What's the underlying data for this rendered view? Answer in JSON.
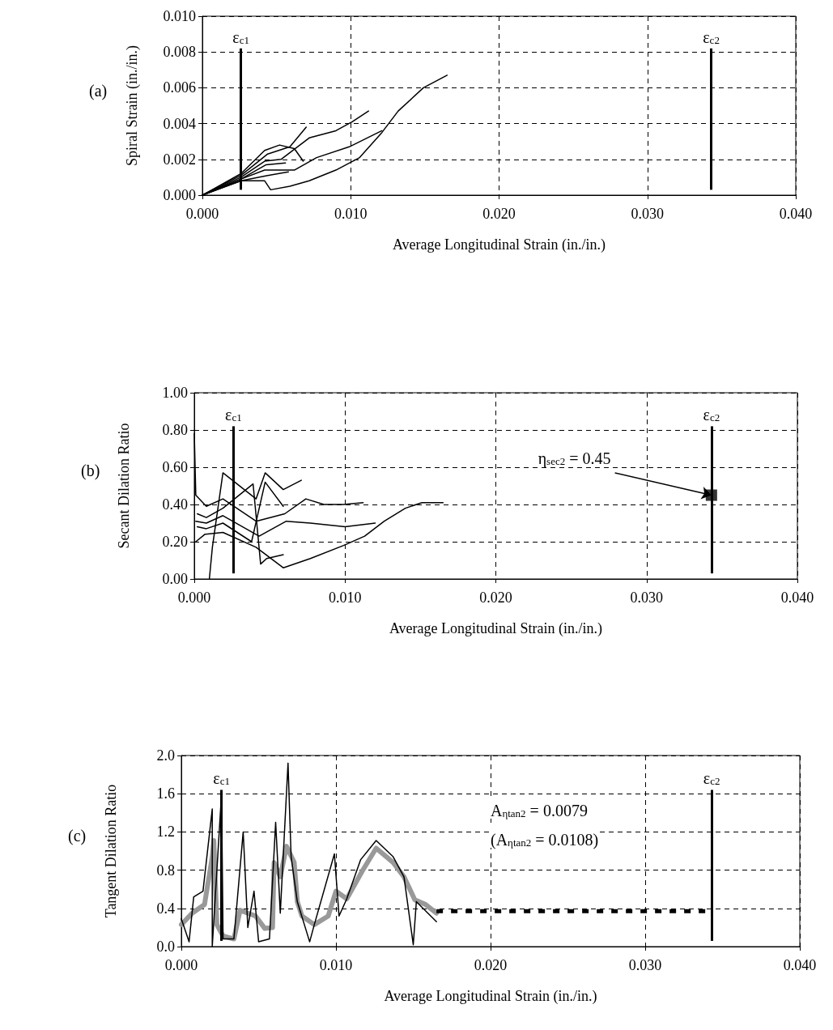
{
  "chart_data": [
    {
      "type": "line",
      "title": "(a)",
      "xlabel": "Average Longitudinal Strain (in./in.)",
      "ylabel": "Spiral Strain (in./in.)",
      "xlim": [
        0,
        0.04
      ],
      "xticks": [
        {
          "value": 0,
          "label": "0.000"
        },
        {
          "value": 0.01,
          "label": "0.010"
        },
        {
          "value": 0.02,
          "label": "0.020"
        },
        {
          "value": 0.03,
          "label": "0.030"
        },
        {
          "value": 0.04,
          "label": "0.040"
        }
      ],
      "ylim": [
        0,
        0.01
      ],
      "yticks": [
        {
          "value": 0,
          "label": "0.000"
        },
        {
          "value": 0.002,
          "label": "0.002"
        },
        {
          "value": 0.004,
          "label": "0.004"
        },
        {
          "value": 0.006,
          "label": "0.006"
        },
        {
          "value": 0.008,
          "label": "0.008"
        },
        {
          "value": 0.01,
          "label": "0.010"
        }
      ],
      "grid": true,
      "marker": "none",
      "ref_lines": [
        {
          "axis": "x",
          "value": 0.0026,
          "label": "ε$_{c1}$",
          "color": "#000000"
        },
        {
          "axis": "x",
          "value": 0.0343,
          "label": "ε$_{c2}$",
          "color": "#000000"
        }
      ],
      "series": [
        {
          "color": "#000000",
          "x": [
            0,
            0.0026,
            0.0042,
            0.0046,
            0.0059,
            0.0072,
            0.009,
            0.0106,
            0.0121,
            0.0132,
            0.0149,
            0.0165
          ],
          "values": [
            0,
            0.0008,
            0.0008,
            0.0003,
            0.0005,
            0.0008,
            0.0014,
            0.0021,
            0.0035,
            0.0047,
            0.006,
            0.0067
          ]
        },
        {
          "color": "#000000",
          "x": [
            0,
            0.0026,
            0.0042,
            0.0062,
            0.0077,
            0.0099,
            0.0121
          ],
          "values": [
            0,
            0.0009,
            0.0014,
            0.0014,
            0.0021,
            0.0027,
            0.0036
          ]
        },
        {
          "color": "#000000",
          "x": [
            0,
            0.0026,
            0.0042,
            0.0053,
            0.0072,
            0.009,
            0.0101,
            0.0112
          ],
          "values": [
            0,
            0.001,
            0.0019,
            0.002,
            0.0032,
            0.0036,
            0.0041,
            0.0047
          ]
        },
        {
          "color": "#000000",
          "x": [
            0,
            0.0026,
            0.0044,
            0.0059,
            0.007
          ],
          "values": [
            0,
            0.0011,
            0.0023,
            0.0027,
            0.0038
          ]
        },
        {
          "color": "#000000",
          "x": [
            0,
            0.0026,
            0.0042,
            0.0052,
            0.0062,
            0.0068
          ],
          "values": [
            0,
            0.0012,
            0.0025,
            0.0028,
            0.0026,
            0.0019
          ]
        },
        {
          "color": "#000000",
          "x": [
            0,
            0.0026,
            0.0043,
            0.0056
          ],
          "values": [
            0,
            0.0009,
            0.0017,
            0.0018
          ]
        },
        {
          "color": "#000000",
          "x": [
            0,
            0.0026,
            0.0044,
            0.0058
          ],
          "values": [
            0,
            0.0008,
            0.0011,
            0.0013
          ]
        }
      ]
    },
    {
      "type": "line",
      "title": "(b)",
      "xlabel": "Average Longitudinal Strain (in./in.)",
      "ylabel": "Secant Dilation Ratio",
      "xlim": [
        0,
        0.04
      ],
      "xticks": [
        {
          "value": 0,
          "label": "0.000"
        },
        {
          "value": 0.01,
          "label": "0.010"
        },
        {
          "value": 0.02,
          "label": "0.020"
        },
        {
          "value": 0.03,
          "label": "0.030"
        },
        {
          "value": 0.04,
          "label": "0.040"
        }
      ],
      "ylim": [
        0,
        1
      ],
      "yticks": [
        {
          "value": 0,
          "label": "0.00"
        },
        {
          "value": 0.2,
          "label": "0.20"
        },
        {
          "value": 0.4,
          "label": "0.40"
        },
        {
          "value": 0.6,
          "label": "0.60"
        },
        {
          "value": 0.8,
          "label": "0.80"
        },
        {
          "value": 1,
          "label": "1.00"
        }
      ],
      "grid": true,
      "marker": "none",
      "ref_lines": [
        {
          "axis": "x",
          "value": 0.0026,
          "label": "ε$_{c1}$",
          "color": "#000000"
        },
        {
          "axis": "x",
          "value": 0.0343,
          "label": "ε$_{c2}$",
          "color": "#000000"
        }
      ],
      "annotations": [
        {
          "text": "η$_{sec2}$ = 0.45",
          "x": 0.0343,
          "y": 0.45
        }
      ],
      "series": [
        {
          "color": "#000000",
          "x": [
            0.0001,
            0.0007,
            0.0019,
            0.0041,
            0.0059,
            0.0077,
            0.0099,
            0.0113,
            0.0126,
            0.014,
            0.0151,
            0.0165
          ],
          "values": [
            0.2,
            0.24,
            0.25,
            0.17,
            0.06,
            0.11,
            0.18,
            0.23,
            0.31,
            0.38,
            0.41,
            0.41
          ]
        },
        {
          "color": "#000000",
          "x": [
            0,
            0.0001,
            0.0008,
            0.0019,
            0.0041,
            0.006,
            0.0074,
            0.0086,
            0.0099,
            0.0112
          ],
          "values": [
            0.78,
            0.45,
            0.39,
            0.43,
            0.31,
            0.35,
            0.43,
            0.4,
            0.4,
            0.41
          ]
        },
        {
          "color": "#000000",
          "x": [
            0.0001,
            0.0008,
            0.0019,
            0.0043,
            0.0061,
            0.0077,
            0.01,
            0.012
          ],
          "values": [
            0.31,
            0.3,
            0.34,
            0.23,
            0.31,
            0.3,
            0.28,
            0.3
          ]
        },
        {
          "color": "#000000",
          "x": [
            0.001,
            0.0012,
            0.0019,
            0.0041,
            0.0047,
            0.0059,
            0.0071
          ],
          "values": [
            0,
            0.17,
            0.57,
            0.43,
            0.57,
            0.48,
            0.53
          ]
        },
        {
          "color": "#000000",
          "x": [
            0.0002,
            0.0008,
            0.0019,
            0.0039,
            0.0044,
            0.0048,
            0.0059
          ],
          "values": [
            0.35,
            0.33,
            0.38,
            0.51,
            0.08,
            0.11,
            0.13
          ]
        },
        {
          "color": "#000000",
          "x": [
            0.0002,
            0.0008,
            0.0019,
            0.0038,
            0.0047,
            0.0059
          ],
          "values": [
            0.28,
            0.27,
            0.3,
            0.2,
            0.52,
            0.39
          ]
        },
        {
          "type": "scatter",
          "marker": "square",
          "color": "#000000",
          "x": [
            0.0343
          ],
          "values": [
            0.45
          ]
        }
      ]
    },
    {
      "type": "line",
      "title": "(c)",
      "xlabel": "Average Longitudinal Strain (in./in.)",
      "ylabel": "Tangent Dilation Ratio",
      "xlim": [
        0,
        0.04
      ],
      "xticks": [
        {
          "value": 0,
          "label": "0.000"
        },
        {
          "value": 0.01,
          "label": "0.010"
        },
        {
          "value": 0.02,
          "label": "0.020"
        },
        {
          "value": 0.03,
          "label": "0.030"
        },
        {
          "value": 0.04,
          "label": "0.040"
        }
      ],
      "ylim": [
        0,
        2
      ],
      "yticks": [
        {
          "value": 0,
          "label": "0.0"
        },
        {
          "value": 0.4,
          "label": "0.4"
        },
        {
          "value": 0.8,
          "label": "0.8"
        },
        {
          "value": 1.2,
          "label": "1.2"
        },
        {
          "value": 1.6,
          "label": "1.6"
        },
        {
          "value": 2,
          "label": "2.0"
        }
      ],
      "grid": true,
      "marker": "none",
      "ref_lines": [
        {
          "axis": "x",
          "value": 0.0026,
          "label": "ε$_{c1}$",
          "color": "#000000"
        },
        {
          "axis": "x",
          "value": 0.0343,
          "label": "ε$_{c2}$",
          "color": "#000000"
        }
      ],
      "annotations": [
        "A$_{ηtan2}$ = 0.0079",
        "(A$_{ηtan2}$ = 0.0108)"
      ],
      "series": [
        {
          "color": "#000000",
          "x": [
            0,
            0.0005,
            0.0008,
            0.0014,
            0.002,
            0.002,
            0.0026,
            0.0027,
            0.0034,
            0.004,
            0.0043,
            0.0047,
            0.005,
            0.0057,
            0.0061,
            0.0064,
            0.0069,
            0.0071,
            0.0075,
            0.0083,
            0.0086,
            0.0099,
            0.0102,
            0.0107,
            0.0116,
            0.0126,
            0.0137,
            0.0144,
            0.015,
            0.0152,
            0.0165
          ],
          "values": [
            0.29,
            0.05,
            0.52,
            0.58,
            1.44,
            0,
            1.6,
            0.08,
            0.08,
            1.2,
            0.2,
            0.58,
            0.05,
            0.08,
            1.3,
            0.35,
            1.92,
            0.94,
            0.47,
            0.05,
            0.23,
            0.97,
            0.32,
            0.5,
            0.91,
            1.11,
            0.94,
            0.73,
            0.02,
            0.47,
            0.26
          ]
        },
        {
          "color": "#999999",
          "x": [
            0,
            0.0007,
            0.0015,
            0.002,
            0.0021,
            0.0023,
            0.0027,
            0.0034,
            0.0038,
            0.0048,
            0.0054,
            0.0059,
            0.006,
            0.0064,
            0.0068,
            0.0073,
            0.0075,
            0.0078,
            0.0086,
            0.0095,
            0.01,
            0.0107,
            0.0117,
            0.0126,
            0.0137,
            0.0144,
            0.0151,
            0.0158,
            0.0165
          ],
          "values": [
            0.23,
            0.35,
            0.44,
            0.94,
            1.11,
            0.23,
            0.11,
            0.08,
            0.38,
            0.32,
            0.19,
            0.2,
            0.88,
            0.73,
            1.05,
            0.88,
            0.47,
            0.32,
            0.23,
            0.32,
            0.58,
            0.5,
            0.79,
            1.03,
            0.88,
            0.73,
            0.49,
            0.44,
            0.35
          ]
        },
        {
          "color": "#000000",
          "line_style": "dashed",
          "x": [
            0.0165,
            0.0343
          ],
          "values": [
            0.37,
            0.37
          ]
        }
      ]
    }
  ]
}
